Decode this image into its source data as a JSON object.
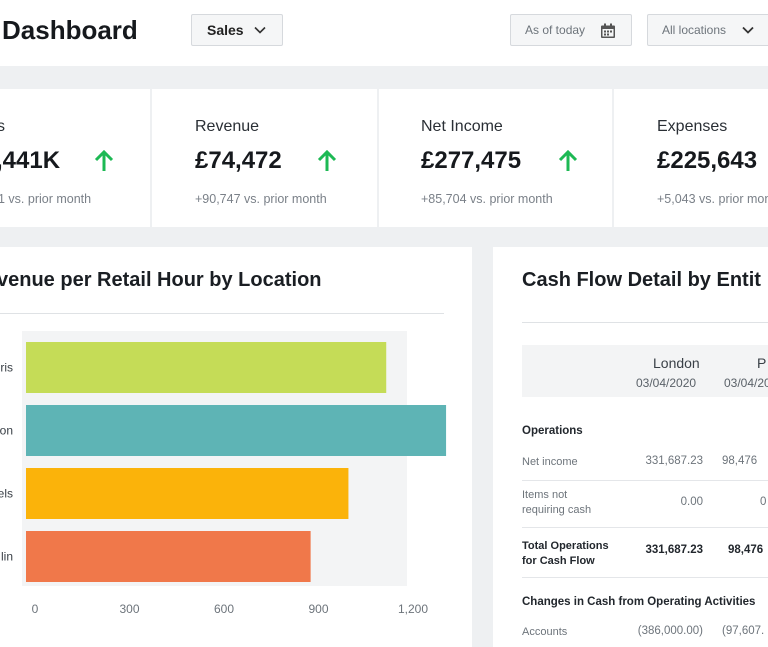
{
  "header": {
    "title": "Dashboard",
    "report_select": "Sales",
    "date_label": "As of today",
    "location_select": "All locations"
  },
  "kpis": [
    {
      "label": "s",
      "value": ",441K",
      "delta": "1 vs. prior month",
      "trend": "up"
    },
    {
      "label": "Revenue",
      "value": "£74,472",
      "delta": "+90,747 vs. prior month",
      "trend": "up"
    },
    {
      "label": "Net Income",
      "value": "£277,475",
      "delta": "+85,704 vs. prior month",
      "trend": "up"
    },
    {
      "label": "Expenses",
      "value": "£225,643",
      "delta": "+5,043 vs. prior month",
      "trend": "none"
    }
  ],
  "colors": {
    "up_arrow": "#1db954",
    "bar_paris": "#c5dc57",
    "bar_london": "#5eb4b5",
    "bar_brussels": "#fbb30a",
    "bar_dublin": "#f0784a"
  },
  "revenue_panel": {
    "title": "venue per Retail Hour by Location"
  },
  "chart_data": {
    "type": "bar",
    "orientation": "horizontal",
    "categories": [
      "ris",
      "on",
      "els",
      "lin"
    ],
    "values": [
      1115,
      1305,
      995,
      875
    ],
    "colors": [
      "#c5dc57",
      "#5eb4b5",
      "#fbb30a",
      "#f0784a"
    ],
    "xlim": [
      0,
      1300
    ],
    "xticks": [
      "0",
      "300",
      "600",
      "900",
      "1,200"
    ],
    "title": "venue per Retail Hour by Location",
    "grid": false
  },
  "cashflow_panel": {
    "title": "Cash Flow Detail by Entit",
    "columns": [
      {
        "name": "London",
        "date": "03/04/2020"
      },
      {
        "name": "P",
        "date": "03/04/20"
      }
    ],
    "sections": {
      "operations": "Operations",
      "changes": "Changes in Cash from Operating Activities"
    },
    "rows": [
      {
        "label": "Net income",
        "v1": "331,687.23",
        "v2": "98,476"
      },
      {
        "label": "Items not requiring cash",
        "v1": "0.00",
        "v2": "0"
      },
      {
        "label": "Total Operations for Cash Flow",
        "v1": "331,687.23",
        "v2": "98,476"
      },
      {
        "label": "Accounts",
        "v1": "(386,000.00)",
        "v2": "(97,607."
      }
    ]
  }
}
